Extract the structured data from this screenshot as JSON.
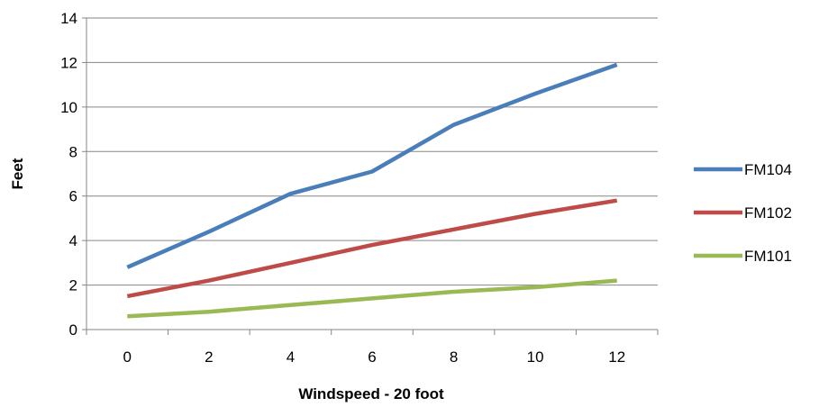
{
  "chart_data": {
    "type": "line",
    "title": "",
    "xlabel": "Windspeed - 20 foot",
    "ylabel": "Feet",
    "categories": [
      "0",
      "2",
      "4",
      "6",
      "8",
      "10",
      "12"
    ],
    "ylim": [
      0,
      14
    ],
    "yticks": [
      "0",
      "2",
      "4",
      "6",
      "8",
      "10",
      "12",
      "14"
    ],
    "grid": true,
    "legend_position": "right",
    "series": [
      {
        "name": "FM104",
        "color": "#4a7ebb",
        "values": [
          2.8,
          4.4,
          6.1,
          7.1,
          9.2,
          10.6,
          11.9
        ]
      },
      {
        "name": "FM102",
        "color": "#be4b48",
        "values": [
          1.5,
          2.2,
          3.0,
          3.8,
          4.5,
          5.2,
          5.8
        ]
      },
      {
        "name": "FM101",
        "color": "#98b954",
        "values": [
          0.6,
          0.8,
          1.1,
          1.4,
          1.7,
          1.9,
          2.2
        ]
      }
    ]
  }
}
